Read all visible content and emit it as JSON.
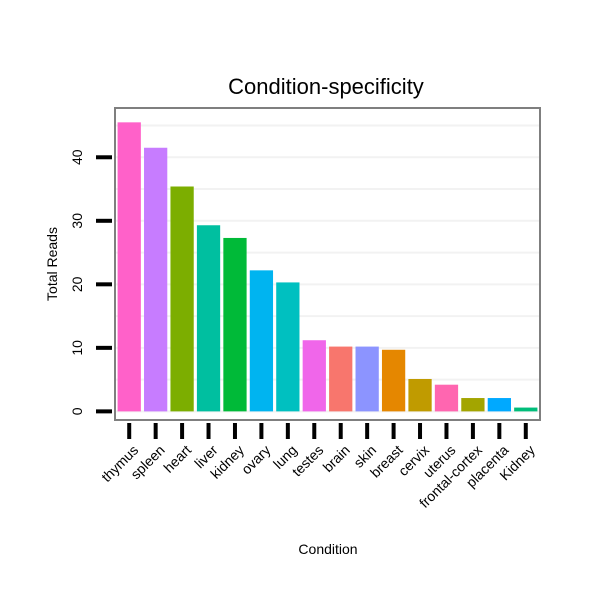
{
  "chart_data": {
    "type": "bar",
    "title": "Condition-specificity",
    "xlabel": "Condition",
    "ylabel": "Total Reads",
    "categories": [
      "thymus",
      "spleen",
      "heart",
      "liver",
      "kidney",
      "ovary",
      "lung",
      "testes",
      "brain",
      "skin",
      "breast",
      "cervix",
      "uterus",
      "frontal-cortex",
      "placenta",
      "Kidney"
    ],
    "values": [
      45.5,
      41.5,
      35.4,
      29.3,
      27.3,
      22.2,
      20.3,
      11.2,
      10.2,
      10.2,
      9.7,
      5.1,
      4.2,
      2.1,
      2.1,
      0.6
    ],
    "colors": [
      "#FF61C9",
      "#C77CFF",
      "#7CAE00",
      "#00BFA0",
      "#00BA38",
      "#00B4F0",
      "#00C0C0",
      "#F066EA",
      "#F8766D",
      "#8C94FF",
      "#E58700",
      "#C09B00",
      "#FF66B0",
      "#A3A500",
      "#00A9FF",
      "#00BD7A"
    ],
    "yticks": [
      0,
      10,
      20,
      30,
      40
    ],
    "ylim": [
      -1.2,
      47.6
    ],
    "grid": true,
    "legend": "none"
  }
}
